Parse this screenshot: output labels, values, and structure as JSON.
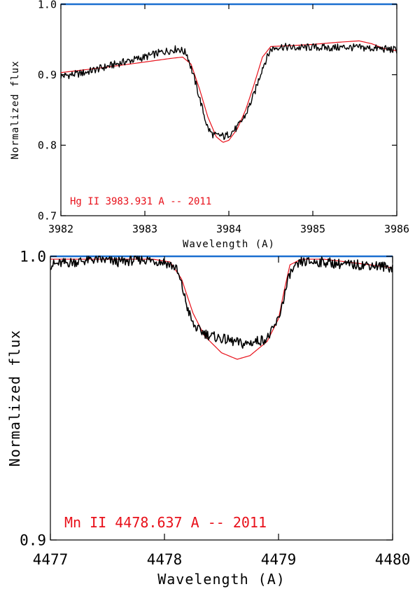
{
  "colors": {
    "observed": "#000000",
    "model": "#e8101a",
    "reference": "#1a6fd0",
    "frame": "#000000"
  },
  "chart_data": [
    {
      "type": "line",
      "title": "",
      "xlabel": "Wavelength (A)",
      "ylabel": "Normalized flux",
      "xlim": [
        3982,
        3986
      ],
      "ylim": [
        0.7,
        1.0
      ],
      "xticks": [
        3982,
        3983,
        3984,
        3985,
        3986
      ],
      "xtick_labels": [
        "3982",
        "3983",
        "3984",
        "3985",
        "3986"
      ],
      "yticks": [
        0.7,
        0.8,
        0.9,
        1.0
      ],
      "ytick_labels": [
        "0.7",
        "0.8",
        "0.9",
        "1.0"
      ],
      "grid": false,
      "annotation": "Hg II 3983.931 A -- 2011",
      "reference_line": 1.0,
      "series": [
        {
          "role": "observed",
          "x": [
            3982.0,
            3982.25,
            3982.5,
            3982.75,
            3983.0,
            3983.2,
            3983.4,
            3983.5,
            3983.6,
            3983.7,
            3983.75,
            3983.8,
            3983.85,
            3983.9,
            3983.95,
            3984.0,
            3984.05,
            3984.1,
            3984.2,
            3984.3,
            3984.4,
            3984.5,
            3984.6,
            3984.8,
            3985.0,
            3985.2,
            3985.4,
            3985.6,
            3985.8,
            3986.0
          ],
          "y": [
            0.898,
            0.902,
            0.91,
            0.918,
            0.925,
            0.932,
            0.937,
            0.93,
            0.89,
            0.845,
            0.824,
            0.816,
            0.813,
            0.814,
            0.812,
            0.816,
            0.82,
            0.825,
            0.843,
            0.872,
            0.91,
            0.936,
            0.94,
            0.938,
            0.939,
            0.938,
            0.939,
            0.938,
            0.937,
            0.935
          ]
        },
        {
          "role": "model",
          "x": [
            3982.0,
            3982.5,
            3983.0,
            3983.3,
            3983.45,
            3983.55,
            3983.65,
            3983.75,
            3983.85,
            3983.93,
            3984.0,
            3984.1,
            3984.2,
            3984.3,
            3984.4,
            3984.5,
            3984.7,
            3985.0,
            3985.3,
            3985.55,
            3985.7,
            3985.85,
            3986.0
          ],
          "y": [
            0.903,
            0.91,
            0.918,
            0.923,
            0.925,
            0.915,
            0.88,
            0.84,
            0.812,
            0.804,
            0.807,
            0.823,
            0.85,
            0.886,
            0.925,
            0.94,
            0.941,
            0.943,
            0.946,
            0.948,
            0.944,
            0.937,
            0.934
          ]
        }
      ]
    },
    {
      "type": "line",
      "title": "",
      "xlabel": "Wavelength (A)",
      "ylabel": "Normalized flux",
      "xlim": [
        4477,
        4480
      ],
      "ylim": [
        0.9,
        1.0
      ],
      "xticks": [
        4477,
        4478,
        4479,
        4480
      ],
      "xtick_labels": [
        "4477",
        "4478",
        "4479",
        "4480"
      ],
      "yticks": [
        0.9,
        1.0
      ],
      "ytick_labels": [
        "0.9",
        "1.0"
      ],
      "grid": false,
      "annotation": "Mn II 4478.637 A -- 2011",
      "reference_line": 1.0,
      "series": [
        {
          "role": "observed",
          "x": [
            4477.0,
            4477.2,
            4477.4,
            4477.6,
            4477.8,
            4478.0,
            4478.1,
            4478.15,
            4478.2,
            4478.25,
            4478.3,
            4478.4,
            4478.5,
            4478.6,
            4478.7,
            4478.8,
            4478.9,
            4478.95,
            4479.0,
            4479.05,
            4479.1,
            4479.2,
            4479.4,
            4479.6,
            4479.8,
            4480.0
          ],
          "y": [
            0.997,
            0.998,
            0.999,
            0.998,
            0.999,
            0.998,
            0.996,
            0.99,
            0.982,
            0.976,
            0.974,
            0.972,
            0.971,
            0.97,
            0.969,
            0.97,
            0.971,
            0.974,
            0.978,
            0.986,
            0.994,
            0.998,
            0.998,
            0.997,
            0.997,
            0.996
          ]
        },
        {
          "role": "model",
          "x": [
            4477.0,
            4477.3,
            4477.6,
            4477.9,
            4478.05,
            4478.15,
            4478.25,
            4478.35,
            4478.5,
            4478.637,
            4478.75,
            4478.9,
            4479.0,
            4479.05,
            4479.1,
            4479.2,
            4479.4,
            4479.6,
            4479.8,
            4480.0
          ],
          "y": [
            0.999,
            0.999,
            0.999,
            0.999,
            0.998,
            0.992,
            0.98,
            0.972,
            0.966,
            0.9637,
            0.965,
            0.97,
            0.978,
            0.988,
            0.997,
            0.999,
            0.999,
            0.998,
            0.997,
            0.996
          ]
        }
      ]
    }
  ]
}
